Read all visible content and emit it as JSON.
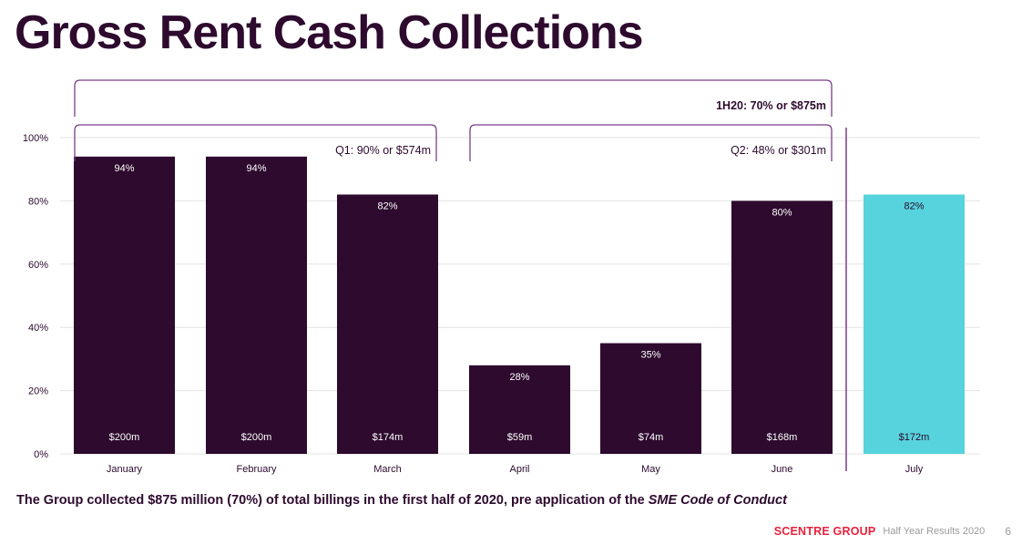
{
  "title": "Gross Rent Cash Collections",
  "chart_data": {
    "type": "bar",
    "categories": [
      "January",
      "February",
      "March",
      "April",
      "May",
      "June",
      "July"
    ],
    "values": [
      94,
      94,
      82,
      28,
      35,
      80,
      82
    ],
    "pct_labels": [
      "94%",
      "94%",
      "82%",
      "28%",
      "35%",
      "80%",
      "82%"
    ],
    "amount_labels": [
      "$200m",
      "$200m",
      "$174m",
      "$59m",
      "$74m",
      "$168m",
      "$172m"
    ],
    "ylim": [
      0,
      100
    ],
    "yticks": [
      0,
      20,
      40,
      60,
      80,
      100
    ],
    "ytick_labels": [
      "0%",
      "20%",
      "40%",
      "60%",
      "80%",
      "100%"
    ],
    "grid": true,
    "colors": {
      "h1": "#2d0a2e",
      "july": "#56d3dc",
      "bracket": "#7a3e8c",
      "grid": "#e3e3e3"
    },
    "annotations": {
      "half": "1H20: 70% or $875m",
      "q1": "Q1: 90% or $574m",
      "q2": "Q2: 48% or $301m"
    }
  },
  "caption": {
    "main": "The Group collected $875 million (70%) of total billings in the first half of 2020, pre application of the ",
    "emphasis": "SME Code of Conduct"
  },
  "footer": {
    "brand": "SCENTRE GROUP",
    "text": "Half Year Results 2020",
    "page": "6"
  }
}
